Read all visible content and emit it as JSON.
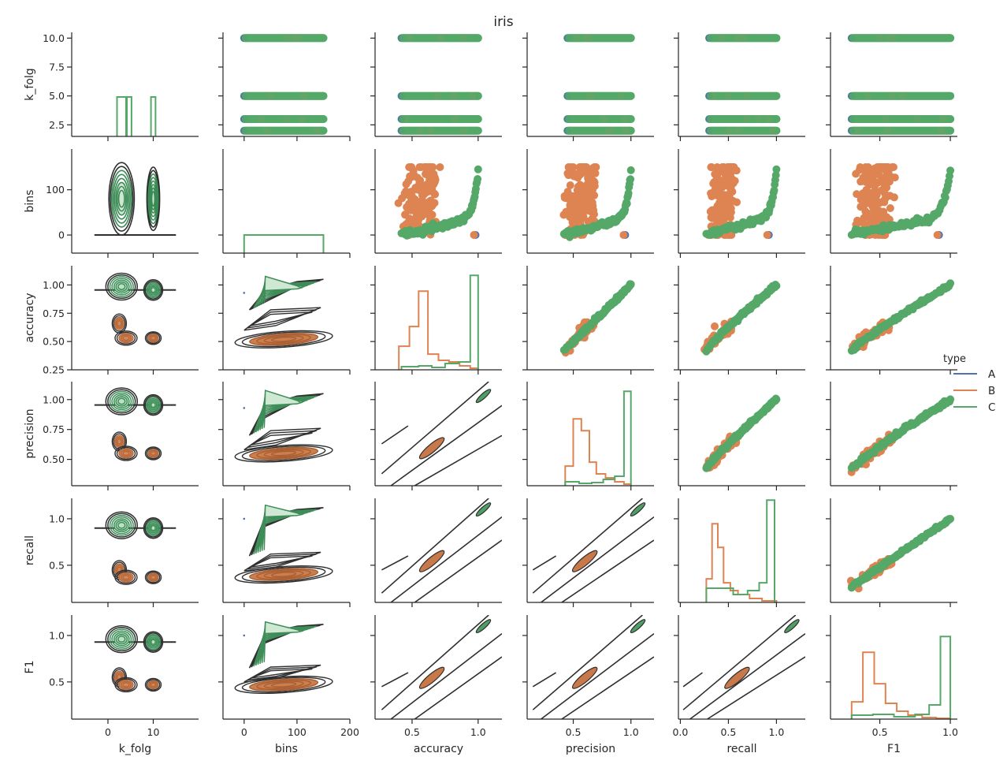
{
  "chart_data": {
    "type": "pairplot",
    "title": "iris",
    "variables": [
      "k_folg",
      "bins",
      "accuracy",
      "precision",
      "recall",
      "F1"
    ],
    "axes": {
      "k_folg": {
        "lim": [
          -8,
          20
        ],
        "xticks": [
          0,
          10
        ],
        "yticks": [
          2.5,
          5.0,
          7.5,
          10.0
        ],
        "ylim": [
          1.5,
          10.5
        ],
        "ylabels": [
          "2.5",
          "5.0",
          "7.5",
          "10.0"
        ],
        "xlabels": [
          "0",
          "10"
        ]
      },
      "bins": {
        "lim": [
          -40,
          200
        ],
        "xticks": [
          0,
          100,
          200
        ],
        "yticks": [
          0,
          100
        ],
        "ylim": [
          -40,
          190
        ],
        "ylabels": [
          "0",
          "100"
        ],
        "xlabels": [
          "0",
          "100",
          "200"
        ]
      },
      "accuracy": {
        "lim": [
          0.22,
          1.18
        ],
        "xticks": [
          0.5,
          1.0
        ],
        "yticks": [
          0.25,
          0.5,
          0.75,
          1.0
        ],
        "ylim": [
          0.25,
          1.17
        ],
        "ylabels": [
          "0.25",
          "0.50",
          "0.75",
          "1.00"
        ],
        "xlabels": [
          "0.5",
          "1.0"
        ]
      },
      "precision": {
        "lim": [
          0.1,
          1.2
        ],
        "xticks": [
          0.5,
          1.0
        ],
        "yticks": [
          0.5,
          0.75,
          1.0
        ],
        "ylim": [
          0.28,
          1.15
        ],
        "ylabels": [
          "0.50",
          "0.75",
          "1.00"
        ],
        "xlabels": [
          "0.5",
          "1.0"
        ]
      },
      "recall": {
        "lim": [
          -0.02,
          1.3
        ],
        "xticks": [
          0.0,
          0.5,
          1.0
        ],
        "yticks": [
          0.5,
          1.0
        ],
        "ylim": [
          0.1,
          1.22
        ],
        "ylabels": [
          "0.5",
          "1.0"
        ],
        "xlabels": [
          "0.0",
          "0.5",
          "1.0"
        ]
      },
      "F1": {
        "lim": [
          0.15,
          1.05
        ],
        "xticks": [
          0.5,
          1.0
        ],
        "yticks": [
          0.5,
          1.0
        ],
        "ylim": [
          0.1,
          1.22
        ],
        "ylabels": [
          "0.5",
          "1.0"
        ],
        "xlabels": [
          "0.5",
          "1.0"
        ]
      }
    },
    "series": [
      {
        "name": "A",
        "color": "#4c72b0"
      },
      {
        "name": "B",
        "color": "#dd8452"
      },
      {
        "name": "C",
        "color": "#55a868"
      }
    ],
    "legend": {
      "title": "type",
      "placement": "right",
      "entries": [
        "A",
        "B",
        "C"
      ]
    },
    "kde_color": "#2f2f2f",
    "grid": false
  }
}
